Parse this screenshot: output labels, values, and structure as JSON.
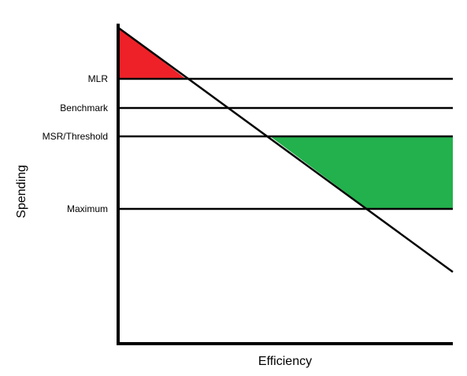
{
  "axes": {
    "x_label": "Efficiency",
    "y_label": "Spending"
  },
  "levels": [
    {
      "name": "mlr",
      "label": "MLR"
    },
    {
      "name": "benchmark",
      "label": "Benchmark"
    },
    {
      "name": "msr-threshold",
      "label": "MSR/Threshold"
    },
    {
      "name": "maximum",
      "label": "Maximum"
    }
  ],
  "colors": {
    "loss_region": "#ee2128",
    "savings_region": "#22b14c",
    "lines": "#000000",
    "background": "#ffffff"
  }
}
